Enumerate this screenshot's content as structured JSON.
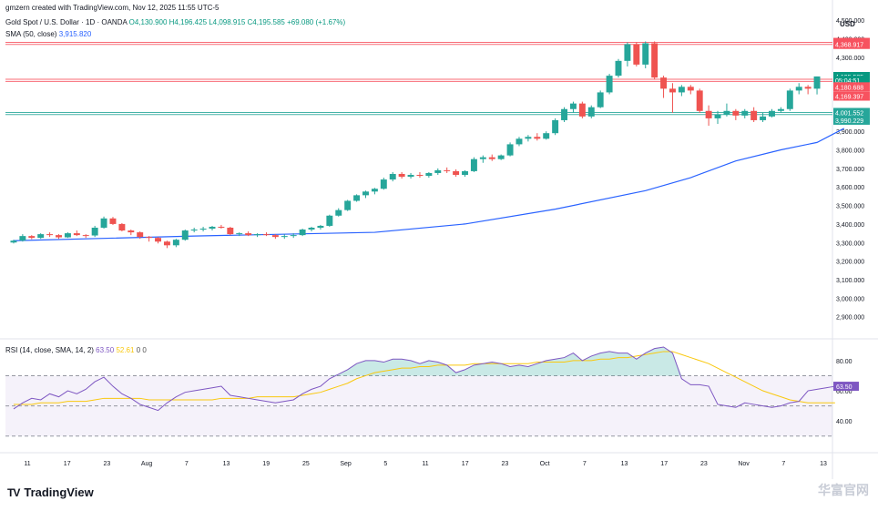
{
  "watermark_top": "gmzern created with TradingView.com, Nov 12, 2025 11:55 UTC-5",
  "legend": {
    "symbol": "Gold Spot / U.S. Dollar · 1D · OANDA",
    "ohlc": "O4,130.900 H4,196.425 L4,098.915 C4,195.585 +69.080 (+1.67%)",
    "sma_label": "SMA (50, close)",
    "sma_value": "3,915.820",
    "rsi_label": "RSI (14, close, SMA, 14, 2)",
    "rsi_value": "63.50",
    "rsi_sma_value": "52.61",
    "rsi_extra": "0  0"
  },
  "currency": "USD",
  "brand": {
    "icon": "TV",
    "name": "TradingView"
  },
  "bottom_right_watermark": "华富官网",
  "colors": {
    "up": "#26a69a",
    "down": "#ef5350",
    "sma": "#2962ff",
    "rsi": "#7e57c2",
    "rsi_sma": "#f9c80e"
  },
  "chart_data": [
    {
      "type": "candlestick",
      "title": "Gold Spot / U.S. Dollar · 1D · OANDA",
      "ylabel": "USD",
      "ylim": [
        2800,
        4520
      ],
      "y_ticks": [
        "4,500.000",
        "4,400.000",
        "4,300.000",
        "3,900.000",
        "3,800.000",
        "3,700.000",
        "3,600.000",
        "3,500.000",
        "3,400.000",
        "3,300.000",
        "3,200.000",
        "3,100.000",
        "3,000.000",
        "2,900.000"
      ],
      "x_tick_labels": [
        "11",
        "17",
        "23",
        "Aug",
        "7",
        "13",
        "19",
        "25",
        "Sep",
        "5",
        "11",
        "17",
        "23",
        "Oct",
        "7",
        "13",
        "17",
        "23",
        "Nov",
        "7",
        "13"
      ],
      "candles": [
        [
          3300,
          3315,
          3295,
          3310
        ],
        [
          3310,
          3345,
          3305,
          3335
        ],
        [
          3335,
          3340,
          3318,
          3325
        ],
        [
          3325,
          3350,
          3320,
          3345
        ],
        [
          3345,
          3355,
          3330,
          3340
        ],
        [
          3340,
          3345,
          3320,
          3328
        ],
        [
          3328,
          3355,
          3325,
          3350
        ],
        [
          3350,
          3365,
          3335,
          3340
        ],
        [
          3340,
          3345,
          3325,
          3338
        ],
        [
          3338,
          3390,
          3330,
          3380
        ],
        [
          3380,
          3440,
          3375,
          3430
        ],
        [
          3430,
          3438,
          3395,
          3400
        ],
        [
          3400,
          3405,
          3360,
          3365
        ],
        [
          3365,
          3370,
          3340,
          3355
        ],
        [
          3355,
          3360,
          3320,
          3330
        ],
        [
          3330,
          3335,
          3305,
          3325
        ],
        [
          3325,
          3330,
          3295,
          3305
        ],
        [
          3305,
          3310,
          3270,
          3285
        ],
        [
          3285,
          3320,
          3275,
          3315
        ],
        [
          3315,
          3370,
          3310,
          3365
        ],
        [
          3365,
          3380,
          3355,
          3370
        ],
        [
          3370,
          3385,
          3360,
          3375
        ],
        [
          3375,
          3390,
          3365,
          3385
        ],
        [
          3385,
          3395,
          3375,
          3380
        ],
        [
          3380,
          3385,
          3340,
          3345
        ],
        [
          3345,
          3355,
          3335,
          3350
        ],
        [
          3350,
          3360,
          3335,
          3340
        ],
        [
          3340,
          3350,
          3330,
          3345
        ],
        [
          3345,
          3355,
          3335,
          3340
        ],
        [
          3340,
          3345,
          3320,
          3330
        ],
        [
          3330,
          3345,
          3320,
          3335
        ],
        [
          3335,
          3350,
          3325,
          3340
        ],
        [
          3340,
          3375,
          3335,
          3370
        ],
        [
          3370,
          3385,
          3360,
          3380
        ],
        [
          3380,
          3395,
          3370,
          3390
        ],
        [
          3390,
          3450,
          3385,
          3445
        ],
        [
          3445,
          3485,
          3440,
          3475
        ],
        [
          3475,
          3530,
          3470,
          3525
        ],
        [
          3525,
          3560,
          3520,
          3555
        ],
        [
          3555,
          3580,
          3540,
          3575
        ],
        [
          3575,
          3595,
          3560,
          3590
        ],
        [
          3590,
          3650,
          3585,
          3640
        ],
        [
          3640,
          3680,
          3630,
          3670
        ],
        [
          3670,
          3680,
          3645,
          3655
        ],
        [
          3655,
          3675,
          3645,
          3665
        ],
        [
          3665,
          3680,
          3650,
          3660
        ],
        [
          3660,
          3680,
          3650,
          3675
        ],
        [
          3675,
          3700,
          3665,
          3690
        ],
        [
          3690,
          3705,
          3675,
          3685
        ],
        [
          3685,
          3695,
          3655,
          3665
        ],
        [
          3665,
          3690,
          3655,
          3685
        ],
        [
          3685,
          3760,
          3680,
          3750
        ],
        [
          3750,
          3770,
          3730,
          3760
        ],
        [
          3760,
          3775,
          3740,
          3750
        ],
        [
          3750,
          3775,
          3745,
          3770
        ],
        [
          3770,
          3840,
          3765,
          3830
        ],
        [
          3830,
          3870,
          3820,
          3860
        ],
        [
          3860,
          3880,
          3845,
          3870
        ],
        [
          3870,
          3890,
          3850,
          3860
        ],
        [
          3860,
          3900,
          3855,
          3890
        ],
        [
          3890,
          3970,
          3880,
          3960
        ],
        [
          3960,
          4030,
          3950,
          4020
        ],
        [
          4020,
          4060,
          4000,
          4050
        ],
        [
          4050,
          4060,
          3970,
          3980
        ],
        [
          3980,
          4040,
          3970,
          4030
        ],
        [
          4030,
          4120,
          4025,
          4110
        ],
        [
          4110,
          4210,
          4100,
          4200
        ],
        [
          4200,
          4290,
          4190,
          4280
        ],
        [
          4280,
          4380,
          4250,
          4370
        ],
        [
          4370,
          4380,
          4250,
          4260
        ],
        [
          4260,
          4385,
          4240,
          4375
        ],
        [
          4375,
          4385,
          4180,
          4190
        ],
        [
          4190,
          4200,
          4080,
          4130
        ],
        [
          4130,
          4160,
          4000,
          4110
        ],
        [
          4110,
          4150,
          4090,
          4140
        ],
        [
          4140,
          4150,
          4100,
          4120
        ],
        [
          4120,
          4130,
          4000,
          4010
        ],
        [
          4010,
          4040,
          3930,
          3970
        ],
        [
          3970,
          4010,
          3940,
          3990
        ],
        [
          3990,
          4050,
          3980,
          4010
        ],
        [
          4010,
          4020,
          3960,
          3985
        ],
        [
          3985,
          4020,
          3970,
          4010
        ],
        [
          4010,
          4030,
          3950,
          3960
        ],
        [
          3960,
          4000,
          3950,
          3980
        ],
        [
          3980,
          4020,
          3975,
          4010
        ],
        [
          4010,
          4030,
          4000,
          4020
        ],
        [
          4020,
          4130,
          4010,
          4120
        ],
        [
          4120,
          4160,
          4100,
          4140
        ],
        [
          4140,
          4150,
          4100,
          4130
        ],
        [
          4130,
          4196,
          4099,
          4196
        ]
      ],
      "sma50": [
        [
          0,
          3310
        ],
        [
          20,
          3335
        ],
        [
          40,
          3355
        ],
        [
          50,
          3400
        ],
        [
          60,
          3480
        ],
        [
          70,
          3580
        ],
        [
          75,
          3650
        ],
        [
          80,
          3740
        ],
        [
          85,
          3800
        ],
        [
          89,
          3840
        ],
        [
          92,
          3916
        ]
      ],
      "price_tags": [
        {
          "label": "4,379.672",
          "value": 4379.672,
          "color": "#f7525f"
        },
        {
          "label": "4,368.917",
          "value": 4368.917,
          "color": "#f7525f"
        },
        {
          "label": "4,195.585",
          "value": 4195.585,
          "color": "#089981"
        },
        {
          "label": "05:04:51",
          "value": 4175,
          "color": "#089981"
        },
        {
          "label": "4,180.688",
          "value": 4140,
          "color": "#f7525f"
        },
        {
          "label": "4,169.397",
          "value": 4090,
          "color": "#f7525f"
        },
        {
          "label": "4,001.552",
          "value": 4001.552,
          "color": "#26a69a"
        },
        {
          "label": "3,990.229",
          "value": 3960,
          "color": "#26a69a"
        }
      ],
      "hlines": [
        {
          "value": 4379.672,
          "color": "#f7525f"
        },
        {
          "value": 4368.917,
          "color": "#f7525f"
        },
        {
          "value": 4180.688,
          "color": "#f7525f"
        },
        {
          "value": 4169.397,
          "color": "#f7525f"
        },
        {
          "value": 4001.552,
          "color": "#26a69a"
        },
        {
          "value": 3990.229,
          "color": "#26a69a"
        }
      ]
    },
    {
      "type": "line",
      "title": "RSI (14, close, SMA, 14, 2)",
      "ylim": [
        22,
        92
      ],
      "y_ticks": [
        "80.00",
        "60.00",
        "40.00"
      ],
      "levels": [
        70,
        50,
        30
      ],
      "rsi": [
        48,
        52,
        55,
        54,
        58,
        56,
        60,
        58,
        61,
        66,
        69,
        63,
        58,
        55,
        51,
        49,
        47,
        52,
        56,
        59,
        60,
        61,
        62,
        63,
        57,
        56,
        55,
        54,
        53,
        52,
        53,
        54,
        58,
        61,
        63,
        68,
        71,
        74,
        78,
        80,
        80,
        79,
        81,
        81,
        80,
        78,
        80,
        79,
        77,
        72,
        74,
        77,
        78,
        79,
        78,
        76,
        77,
        76,
        78,
        80,
        81,
        82,
        85,
        80,
        83,
        85,
        86,
        85,
        85,
        81,
        85,
        88,
        89,
        85,
        68,
        64,
        64,
        63,
        51,
        50,
        49,
        52,
        51,
        50,
        49,
        50,
        52,
        53,
        60,
        61,
        62,
        63
      ],
      "rsi_sma": [
        51,
        51,
        51,
        52,
        52,
        52,
        53,
        53,
        53,
        54,
        55,
        55,
        55,
        55,
        55,
        54,
        54,
        54,
        54,
        54,
        54,
        54,
        54,
        55,
        55,
        55,
        55,
        56,
        56,
        56,
        56,
        56,
        57,
        58,
        59,
        61,
        63,
        65,
        68,
        70,
        72,
        73,
        74,
        75,
        75,
        76,
        76,
        77,
        77,
        77,
        77,
        78,
        78,
        78,
        78,
        78,
        78,
        78,
        79,
        79,
        79,
        79,
        80,
        80,
        80,
        81,
        81,
        82,
        82,
        83,
        84,
        85,
        86,
        86,
        84,
        82,
        80,
        78,
        75,
        72,
        69,
        66,
        63,
        60,
        58,
        56,
        54,
        53,
        52,
        52,
        52,
        52
      ]
    }
  ]
}
